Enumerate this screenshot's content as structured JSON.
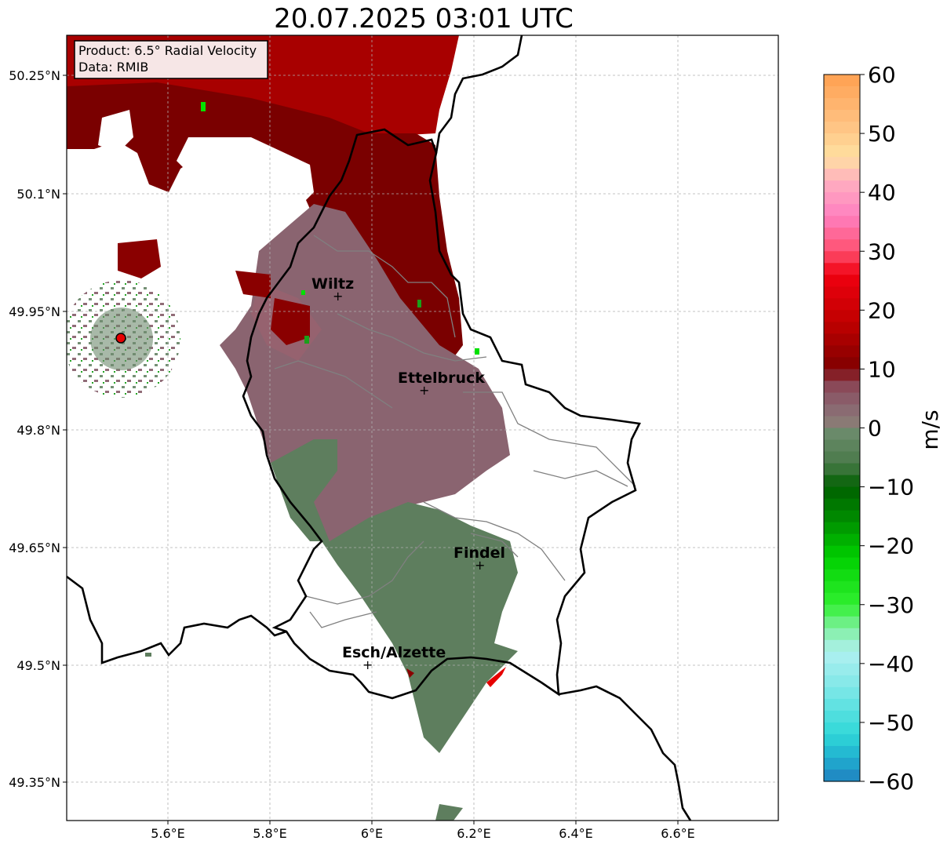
{
  "title": "20.07.2025 03:01 UTC",
  "info_box": {
    "product": "Product: 6.5° Radial Velocity",
    "data_source": "Data: RMIB"
  },
  "map": {
    "lon_ticks": [
      "5.6°E",
      "5.8°E",
      "6°E",
      "6.2°E",
      "6.4°E",
      "6.6°E"
    ],
    "lat_ticks": [
      "50.25°N",
      "50.1°N",
      "49.95°N",
      "49.8°N",
      "49.65°N",
      "49.5°N",
      "49.35°N"
    ],
    "cities": [
      {
        "name": "Wiltz"
      },
      {
        "name": "Ettelbruck"
      },
      {
        "name": "Findel"
      },
      {
        "name": "Esch/Alzette"
      }
    ]
  },
  "colorbar": {
    "label": "m/s",
    "ticks": [
      "60",
      "50",
      "40",
      "30",
      "20",
      "10",
      "0",
      "−10",
      "−20",
      "−30",
      "−40",
      "−50",
      "−60"
    ],
    "range": [
      -60,
      60
    ]
  },
  "colors": {
    "strong_receding": "#a80000",
    "receding_dark": "#7a0000",
    "near_zero_pos": "#8a6470",
    "near_zero_neg": "#5e7e5e",
    "radar_site": "#e60000"
  }
}
